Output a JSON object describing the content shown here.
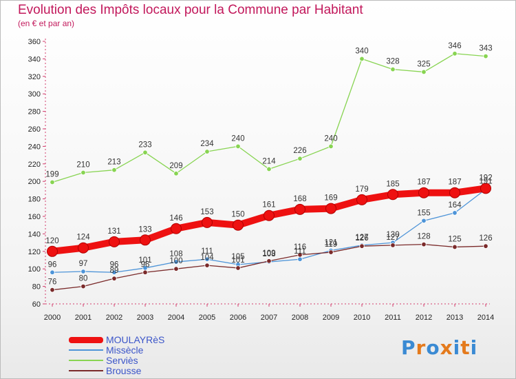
{
  "chart_data": {
    "type": "line",
    "title": "Evolution des Impôts locaux pour la Commune par Habitant",
    "subtitle": "(en € et par an)",
    "xlabel": "",
    "ylabel": "",
    "ylim": [
      60,
      360
    ],
    "grid": false,
    "legend": "bottom-left",
    "x": [
      "2000",
      "2001",
      "2002",
      "2003",
      "2004",
      "2005",
      "2006",
      "2007",
      "2008",
      "2009",
      "2010",
      "2011",
      "2012",
      "2013",
      "2014"
    ],
    "series": [
      {
        "name": "MOULAYRèS",
        "color": "#ee1111",
        "values": [
          120,
          124,
          131,
          133,
          146,
          153,
          150,
          161,
          168,
          169,
          179,
          185,
          187,
          187,
          192
        ]
      },
      {
        "name": "Missècle",
        "color": "#4d94d8",
        "values": [
          96,
          97,
          96,
          101,
          108,
          111,
          105,
          108,
          111,
          121,
          127,
          130,
          155,
          164,
          191
        ]
      },
      {
        "name": "Serviès",
        "color": "#88d452",
        "values": [
          199,
          210,
          213,
          233,
          209,
          234,
          240,
          214,
          226,
          240,
          340,
          328,
          325,
          346,
          343
        ]
      },
      {
        "name": "Brousse",
        "color": "#7a2a2a",
        "values": [
          76,
          80,
          89,
          96,
          100,
          104,
          101,
          109,
          116,
          119,
          126,
          127,
          128,
          125,
          126
        ]
      }
    ]
  },
  "legend_labels": [
    "MOULAYRèS",
    "Missècle",
    "Serviès",
    "Brousse"
  ],
  "logo": {
    "text": "Proxiti",
    "letters": [
      "P",
      "r",
      "o",
      "x",
      "i",
      "t",
      "i"
    ],
    "colors": [
      "#3a8ad3",
      "#e47a1c",
      "#3a8ad3",
      "#e47a1c",
      "#3a8ad3",
      "#e47a1c",
      "#3a8ad3"
    ]
  }
}
